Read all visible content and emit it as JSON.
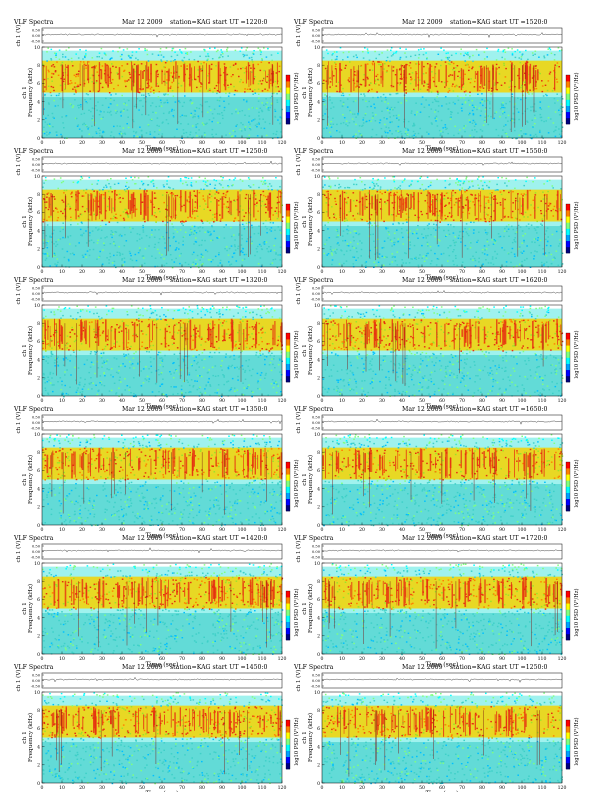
{
  "page_title": "VLF Spectra",
  "common": {
    "date_label": "Mar 12 2009",
    "station_label": "station=KAG",
    "start_label": "start UT =",
    "amp_ylabel": "ch 1 (V)",
    "freq_ylabel": "Frequency (kHz)",
    "channel_label": "ch 1",
    "xlabel": "Time (sec)",
    "cbar_label": "log10 PSD (V²/Hz)"
  },
  "colors": {
    "colormap": [
      "#000080",
      "#0000ff",
      "#00a0ff",
      "#00ffff",
      "#7fff7f",
      "#ffff00",
      "#ff8000",
      "#ff0000"
    ],
    "background_band": "#9ff2ee",
    "noise_floor": "#2fc9c4",
    "emission_band": "#f5d400",
    "emission_core": "#e63010",
    "trace": "#333333"
  },
  "chart_data": [
    {
      "type": "heatmap",
      "title": "VLF Spectra",
      "date": "Mar 12 2009",
      "station": "station=KAG",
      "start_ut": "1220:0",
      "x_label": "Time (sec)",
      "x_range": [
        0,
        120
      ],
      "x_ticks": [
        0,
        10,
        20,
        30,
        40,
        50,
        60,
        70,
        80,
        90,
        100,
        110,
        120
      ],
      "y_label": "Frequency (kHz)",
      "y_range": [
        0,
        10
      ],
      "y_ticks": [
        0,
        2,
        4,
        6,
        8,
        10
      ],
      "amp_label": "ch 1 (V)",
      "amp_ticks": [
        "0.50",
        "0.00",
        "-0.50"
      ],
      "colorbar_label": "log10 PSD (V²/Hz)",
      "emission_band_khz": [
        5,
        8.5
      ]
    },
    {
      "type": "heatmap",
      "title": "VLF Spectra",
      "date": "Mar 12 2009",
      "station": "station=KAG",
      "start_ut": "1250:0",
      "x_label": "Time (sec)",
      "x_range": [
        0,
        120
      ],
      "x_ticks": [
        0,
        10,
        20,
        30,
        40,
        50,
        60,
        70,
        80,
        90,
        100,
        110,
        120
      ],
      "y_label": "Frequency (kHz)",
      "y_range": [
        0,
        10
      ],
      "y_ticks": [
        0,
        2,
        4,
        6,
        8,
        10
      ],
      "amp_label": "ch 1 (V)",
      "amp_ticks": [
        "0.50",
        "0.00",
        "-0.50"
      ],
      "colorbar_label": "log10 PSD (V²/Hz)",
      "emission_band_khz": [
        5,
        8.5
      ]
    },
    {
      "type": "heatmap",
      "title": "VLF Spectra",
      "date": "Mar 12 2009",
      "station": "station=KAG",
      "start_ut": "1320:0",
      "x_label": "Time (sec)",
      "x_range": [
        0,
        120
      ],
      "x_ticks": [
        0,
        10,
        20,
        30,
        40,
        50,
        60,
        70,
        80,
        90,
        100,
        110,
        120
      ],
      "y_label": "Frequency (kHz)",
      "y_range": [
        0,
        10
      ],
      "y_ticks": [
        0,
        2,
        4,
        6,
        8,
        10
      ],
      "amp_label": "ch 1 (V)",
      "amp_ticks": [
        "0.50",
        "0.00",
        "-0.50"
      ],
      "colorbar_label": "log10 PSD (V²/Hz)",
      "emission_band_khz": [
        5,
        8.5
      ]
    },
    {
      "type": "heatmap",
      "title": "VLF Spectra",
      "date": "Mar 12 2009",
      "station": "station=KAG",
      "start_ut": "1350:0",
      "x_label": "Time (sec)",
      "x_range": [
        0,
        120
      ],
      "x_ticks": [
        0,
        10,
        20,
        30,
        40,
        50,
        60,
        70,
        80,
        90,
        100,
        110,
        120
      ],
      "y_label": "Frequency (kHz)",
      "y_range": [
        0,
        10
      ],
      "y_ticks": [
        0,
        2,
        4,
        6,
        8,
        10
      ],
      "amp_label": "ch 1 (V)",
      "amp_ticks": [
        "0.50",
        "0.00",
        "-0.50"
      ],
      "colorbar_label": "log10 PSD (V²/Hz)",
      "emission_band_khz": [
        5,
        8.5
      ]
    },
    {
      "type": "heatmap",
      "title": "VLF Spectra",
      "date": "Mar 12 2009",
      "station": "station=KAG",
      "start_ut": "1420:0",
      "x_label": "Time (sec)",
      "x_range": [
        0,
        120
      ],
      "x_ticks": [
        0,
        10,
        20,
        30,
        40,
        50,
        60,
        70,
        80,
        90,
        100,
        110,
        120
      ],
      "y_label": "Frequency (kHz)",
      "y_range": [
        0,
        10
      ],
      "y_ticks": [
        0,
        2,
        4,
        6,
        8,
        10
      ],
      "amp_label": "ch 1 (V)",
      "amp_ticks": [
        "0.50",
        "0.00",
        "-0.50"
      ],
      "colorbar_label": "log10 PSD (V²/Hz)",
      "emission_band_khz": [
        5,
        8.5
      ]
    },
    {
      "type": "heatmap",
      "title": "VLF Spectra",
      "date": "Mar 12 2009",
      "station": "station=KAG",
      "start_ut": "1450:0",
      "x_label": "Time (sec)",
      "x_range": [
        0,
        120
      ],
      "x_ticks": [
        0,
        10,
        20,
        30,
        40,
        50,
        60,
        70,
        80,
        90,
        100,
        110,
        120
      ],
      "y_label": "Frequency (kHz)",
      "y_range": [
        0,
        10
      ],
      "y_ticks": [
        0,
        2,
        4,
        6,
        8,
        10
      ],
      "amp_label": "ch 1 (V)",
      "amp_ticks": [
        "0.50",
        "0.00",
        "-0.50"
      ],
      "colorbar_label": "log10 PSD (V²/Hz)",
      "emission_band_khz": [
        5,
        8.5
      ]
    },
    {
      "type": "heatmap",
      "title": "VLF Spectra",
      "date": "Mar 12 2009",
      "station": "station=KAG",
      "start_ut": "1520:0",
      "x_label": "Time (sec)",
      "x_range": [
        0,
        120
      ],
      "x_ticks": [
        0,
        10,
        20,
        30,
        40,
        50,
        60,
        70,
        80,
        90,
        100,
        110,
        120
      ],
      "y_label": "Frequency (kHz)",
      "y_range": [
        0,
        10
      ],
      "y_ticks": [
        0,
        2,
        4,
        6,
        8,
        10
      ],
      "amp_label": "ch 1 (V)",
      "amp_ticks": [
        "0.50",
        "0.00",
        "-0.50"
      ],
      "colorbar_label": "log10 PSD (V²/Hz)",
      "emission_band_khz": [
        5,
        8.5
      ]
    },
    {
      "type": "heatmap",
      "title": "VLF Spectra",
      "date": "Mar 12 2009",
      "station": "station=KAG",
      "start_ut": "1550:0",
      "x_label": "Time (sec)",
      "x_range": [
        0,
        120
      ],
      "x_ticks": [
        0,
        10,
        20,
        30,
        40,
        50,
        60,
        70,
        80,
        90,
        100,
        110,
        120
      ],
      "y_label": "Frequency (kHz)",
      "y_range": [
        0,
        10
      ],
      "y_ticks": [
        0,
        2,
        4,
        6,
        8,
        10
      ],
      "amp_label": "ch 1 (V)",
      "amp_ticks": [
        "0.50",
        "0.00",
        "-0.50"
      ],
      "colorbar_label": "log10 PSD (V²/Hz)",
      "emission_band_khz": [
        5,
        8.5
      ]
    },
    {
      "type": "heatmap",
      "title": "VLF Spectra",
      "date": "Mar 12 2009",
      "station": "station=KAG",
      "start_ut": "1620:0",
      "x_label": "Time (sec)",
      "x_range": [
        0,
        120
      ],
      "x_ticks": [
        0,
        10,
        20,
        30,
        40,
        50,
        60,
        70,
        80,
        90,
        100,
        110,
        120
      ],
      "y_label": "Frequency (kHz)",
      "y_range": [
        0,
        10
      ],
      "y_ticks": [
        0,
        2,
        4,
        6,
        8,
        10
      ],
      "amp_label": "ch 1 (V)",
      "amp_ticks": [
        "0.50",
        "0.00",
        "-0.50"
      ],
      "colorbar_label": "log10 PSD (V²/Hz)",
      "emission_band_khz": [
        5,
        8.5
      ]
    },
    {
      "type": "heatmap",
      "title": "VLF Spectra",
      "date": "Mar 12 2009",
      "station": "station=KAG",
      "start_ut": "1650:0",
      "x_label": "Time (sec)",
      "x_range": [
        0,
        120
      ],
      "x_ticks": [
        0,
        10,
        20,
        30,
        40,
        50,
        60,
        70,
        80,
        90,
        100,
        110,
        120
      ],
      "y_label": "Frequency (kHz)",
      "y_range": [
        0,
        10
      ],
      "y_ticks": [
        0,
        2,
        4,
        6,
        8,
        10
      ],
      "amp_label": "ch 1 (V)",
      "amp_ticks": [
        "0.50",
        "0.00",
        "-0.50"
      ],
      "colorbar_label": "log10 PSD (V²/Hz)",
      "emission_band_khz": [
        5,
        8.5
      ]
    },
    {
      "type": "heatmap",
      "title": "VLF Spectra",
      "date": "Mar 12 2009",
      "station": "station=KAG",
      "start_ut": "1720:0",
      "x_label": "Time (sec)",
      "x_range": [
        0,
        120
      ],
      "x_ticks": [
        0,
        10,
        20,
        30,
        40,
        50,
        60,
        70,
        80,
        90,
        100,
        110,
        120
      ],
      "y_label": "Frequency (kHz)",
      "y_range": [
        0,
        10
      ],
      "y_ticks": [
        0,
        2,
        4,
        6,
        8,
        10
      ],
      "amp_label": "ch 1 (V)",
      "amp_ticks": [
        "0.50",
        "0.00",
        "-0.50"
      ],
      "colorbar_label": "log10 PSD (V²/Hz)",
      "emission_band_khz": [
        5,
        8.5
      ]
    },
    {
      "type": "heatmap",
      "title": "VLF Spectra",
      "date": "Mar 12 2009",
      "station": "station=KAG",
      "start_ut": "1250:0",
      "x_label": "Time (sec)",
      "x_range": [
        0,
        120
      ],
      "x_ticks": [
        0,
        10,
        20,
        30,
        40,
        50,
        60,
        70,
        80,
        90,
        100,
        110,
        120
      ],
      "y_label": "Frequency (kHz)",
      "y_range": [
        0,
        10
      ],
      "y_ticks": [
        0,
        2,
        4,
        6,
        8,
        10
      ],
      "amp_label": "ch 1 (V)",
      "amp_ticks": [
        "0.50",
        "0.00",
        "-0.50"
      ],
      "colorbar_label": "log10 PSD (V²/Hz)",
      "emission_band_khz": [
        5,
        8.5
      ]
    }
  ]
}
